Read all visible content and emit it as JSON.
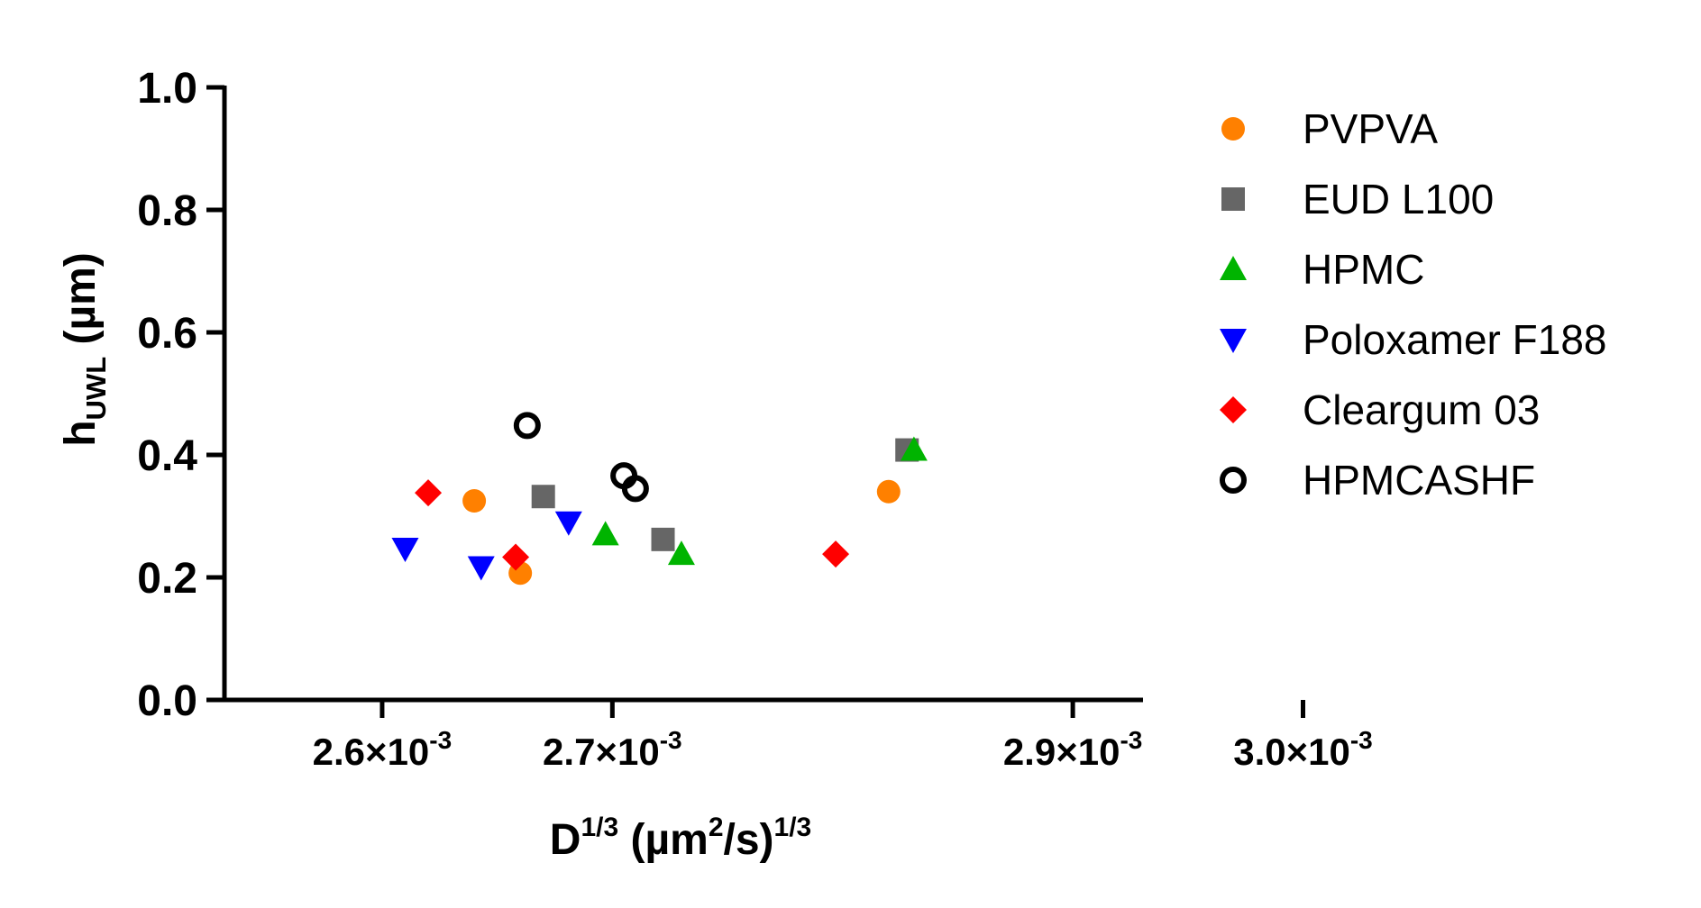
{
  "chart_data": {
    "type": "scatter",
    "title": "",
    "ylabel": {
      "main": "h",
      "sub": "UWL",
      "rest": " (µm)"
    },
    "xlabel": {
      "main": "D",
      "sup1": "1/3",
      "mid": " (µm",
      "sup2": "2",
      "mid2": "/s)",
      "sup3": "1/3"
    },
    "ylim": [
      0,
      1.0
    ],
    "xlim": [
      2.5315,
      2.9305
    ],
    "x_scale_note": "x values in units of 10^-3",
    "y_ticks": [
      "0.0",
      "0.2",
      "0.4",
      "0.6",
      "0.8",
      "1.0"
    ],
    "x_ticks": [
      {
        "mantissa": "2.6",
        "exp": "-3"
      },
      {
        "mantissa": "2.7",
        "exp": "-3"
      },
      {
        "mantissa": "2.9",
        "exp": "-3"
      },
      {
        "mantissa": "3.0",
        "exp": "-3"
      }
    ],
    "grid": false,
    "legend_position": "right",
    "series": [
      {
        "name": "PVPVA",
        "marker": "circle",
        "color": "#FF8000",
        "points": [
          [
            2.64,
            0.325
          ],
          [
            2.66,
            0.207
          ],
          [
            2.82,
            0.34
          ]
        ]
      },
      {
        "name": "EUD L100",
        "marker": "square",
        "color": "#666666",
        "points": [
          [
            2.67,
            0.332
          ],
          [
            2.722,
            0.262
          ],
          [
            2.828,
            0.408
          ]
        ]
      },
      {
        "name": "HPMC",
        "marker": "triangle-up",
        "color": "#00B400",
        "points": [
          [
            2.697,
            0.27
          ],
          [
            2.73,
            0.238
          ],
          [
            2.831,
            0.408
          ]
        ]
      },
      {
        "name": "Poloxamer F188",
        "marker": "triangle-down",
        "color": "#0000FF",
        "points": [
          [
            2.61,
            0.247
          ],
          [
            2.643,
            0.217
          ],
          [
            2.681,
            0.29
          ]
        ]
      },
      {
        "name": "Cleargum 03",
        "marker": "diamond",
        "color": "#FF0000",
        "points": [
          [
            2.62,
            0.338
          ],
          [
            2.658,
            0.233
          ],
          [
            2.797,
            0.238
          ]
        ]
      },
      {
        "name": "HPMCASHF",
        "marker": "open-circle",
        "color": "#000000",
        "points": [
          [
            2.663,
            0.448
          ],
          [
            2.705,
            0.366
          ],
          [
            2.71,
            0.345
          ]
        ]
      }
    ]
  }
}
